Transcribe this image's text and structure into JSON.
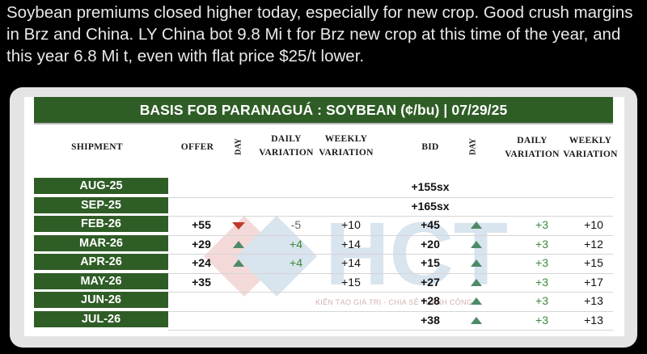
{
  "post": {
    "text": "Soybean premiums closed higher today, especially for new crop. Good crush margins in Brz and China. LY China bot 9.8 Mi t for Brz new crop at this time of the year, and this year 6.8 Mi t, even with flat price $25/t lower."
  },
  "table": {
    "title": "BASIS FOB PARANAGUÁ : SOYBEAN (¢/bu)  | 07/29/25",
    "headers": {
      "shipment": "SHIPMENT",
      "offer": "OFFER",
      "day_offer": "DAY",
      "daily_offer_1": "DAILY",
      "daily_offer_2": "VARIATION",
      "weekly_offer_1": "WEEKLY",
      "weekly_offer_2": "VARIATION",
      "bid": "BID",
      "day_bid": "DAY",
      "daily_bid_1": "DAILY",
      "daily_bid_2": "VARIATION",
      "weekly_bid_1": "WEEKLY",
      "weekly_bid_2": "VARIATION"
    },
    "rows": [
      {
        "shipment": "AUG-25",
        "offer": "",
        "offer_dir": "",
        "offer_daily": "",
        "offer_weekly": "",
        "bid": "+155sx",
        "bid_dir": "",
        "bid_daily": "",
        "bid_weekly": ""
      },
      {
        "shipment": "SEP-25",
        "offer": "",
        "offer_dir": "",
        "offer_daily": "",
        "offer_weekly": "",
        "bid": "+165sx",
        "bid_dir": "",
        "bid_daily": "",
        "bid_weekly": ""
      },
      {
        "shipment": "FEB-26",
        "offer": "+55",
        "offer_dir": "down",
        "offer_daily": "-5",
        "offer_weekly": "+10",
        "bid": "+45",
        "bid_dir": "up",
        "bid_daily": "+3",
        "bid_weekly": "+10"
      },
      {
        "shipment": "MAR-26",
        "offer": "+29",
        "offer_dir": "up",
        "offer_daily": "+4",
        "offer_weekly": "+14",
        "bid": "+20",
        "bid_dir": "up",
        "bid_daily": "+3",
        "bid_weekly": "+12"
      },
      {
        "shipment": "APR-26",
        "offer": "+24",
        "offer_dir": "up",
        "offer_daily": "+4",
        "offer_weekly": "+14",
        "bid": "+15",
        "bid_dir": "up",
        "bid_daily": "+3",
        "bid_weekly": "+15"
      },
      {
        "shipment": "MAY-26",
        "offer": "+35",
        "offer_dir": "",
        "offer_daily": "",
        "offer_weekly": "+15",
        "bid": "+27",
        "bid_dir": "up",
        "bid_daily": "+3",
        "bid_weekly": "+17"
      },
      {
        "shipment": "JUN-26",
        "offer": "",
        "offer_dir": "",
        "offer_daily": "",
        "offer_weekly": "",
        "bid": "+28",
        "bid_dir": "up",
        "bid_daily": "+3",
        "bid_weekly": "+13"
      },
      {
        "shipment": "JUL-26",
        "offer": "",
        "offer_dir": "",
        "offer_daily": "",
        "offer_weekly": "",
        "bid": "+38",
        "bid_dir": "up",
        "bid_daily": "+3",
        "bid_weekly": "+13"
      }
    ]
  },
  "watermark": {
    "logo": "HCT",
    "tagline": "KIẾN TẠO GIÁ TRỊ - CHIA SẺ THÀNH CÔNG"
  },
  "colors": {
    "header_green": "#2f5d26",
    "up_arrow": "#4c8a68",
    "down_arrow": "#c0392b",
    "positive_variation": "#3c8a3a"
  }
}
